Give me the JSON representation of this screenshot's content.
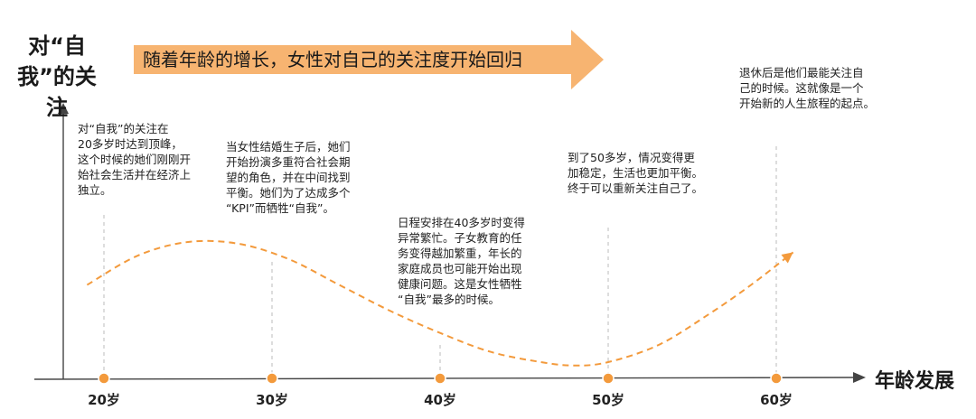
{
  "chart_data": {
    "type": "line",
    "title": "",
    "ylabel": "对“自我”的关注",
    "xlabel": "年龄发展",
    "trend_banner": "随着年龄的增长，女性对自己的关注度开始回归",
    "categories": [
      "20岁",
      "30岁",
      "40岁",
      "50岁",
      "60岁"
    ],
    "x": [
      20,
      30,
      40,
      50,
      60
    ],
    "xlim": [
      15,
      62
    ],
    "series": [
      {
        "name": "",
        "style": "dashed",
        "color": "#F39A3C",
        "x": [
          19,
          22,
          25,
          28,
          31,
          34,
          37,
          40,
          43,
          46,
          48,
          50,
          53,
          56,
          58.5,
          61
        ],
        "values": [
          0.55,
          0.72,
          0.8,
          0.79,
          0.7,
          0.55,
          0.4,
          0.27,
          0.16,
          0.1,
          0.08,
          0.1,
          0.2,
          0.38,
          0.55,
          0.74
        ]
      }
    ],
    "annotations": [
      {
        "age": 20,
        "text": [
          "对“自我”的关注在",
          "20多岁时达到顶峰，",
          "这个时候的她们刚刚开",
          "始社会生活并在经济上",
          "独立。"
        ]
      },
      {
        "age": 30,
        "text": [
          "当女性结婚生子后，她们",
          "开始扮演多重符合社会期",
          "望的角色，并在中间找到",
          "平衡。她们为了达成多个",
          "“KPI”而牺牲“自我”。"
        ]
      },
      {
        "age": 40,
        "text": [
          "日程安排在40多岁时变得",
          "异常繁忙。子女教育的任",
          "务变得越加繁重，年长的",
          "家庭成员也可能开始出现",
          "健康问题。这是女性牺牲",
          "“自我”最多的时候。"
        ]
      },
      {
        "age": 50,
        "text": [
          "到了50多岁，情况变得更",
          "加稳定，生活也更加平衡。",
          "终于可以重新关注自己了。"
        ]
      },
      {
        "age": 60,
        "text": [
          "退休后是他们最能关注自",
          "己的时候。这就像是一个",
          "开始新的人生旅程的起点。"
        ]
      }
    ],
    "colors": {
      "accent": "#F39A3C",
      "banner": "#F7B471",
      "axis": "#444444",
      "guide": "#BBBBBB"
    }
  }
}
